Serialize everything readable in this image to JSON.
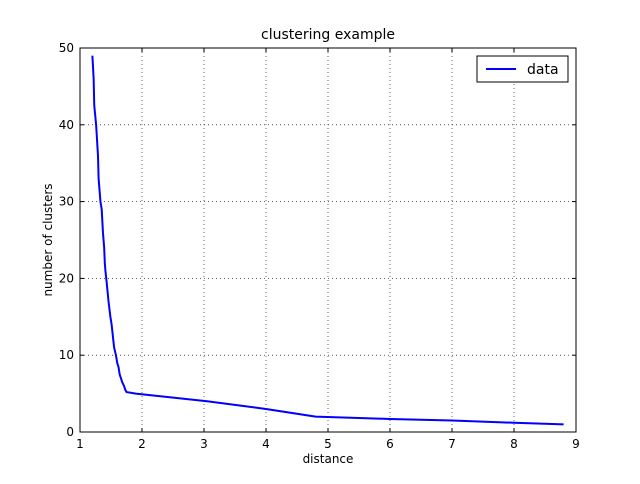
{
  "chart_data": {
    "type": "line",
    "title": "clustering example",
    "xlabel": "distance",
    "ylabel": "number of clusters",
    "xlim": [
      1,
      9
    ],
    "ylim": [
      0,
      50
    ],
    "xticks": [
      1,
      2,
      3,
      4,
      5,
      6,
      7,
      8,
      9
    ],
    "yticks": [
      0,
      10,
      20,
      30,
      40,
      50
    ],
    "grid": true,
    "legend_position": "top-right",
    "series": [
      {
        "name": "data",
        "color": "#0000ff",
        "x": [
          1.2,
          1.22,
          1.23,
          1.26,
          1.29,
          1.3,
          1.31,
          1.33,
          1.35,
          1.37,
          1.39,
          1.4,
          1.41,
          1.43,
          1.46,
          1.49,
          1.51,
          1.53,
          1.55,
          1.58,
          1.6,
          1.62,
          1.64,
          1.66,
          1.68,
          1.71,
          1.73,
          1.75,
          1.9,
          3.05,
          4.0,
          4.8,
          6.0,
          7.0,
          8.0,
          8.8
        ],
        "y": [
          49,
          46,
          42.5,
          40,
          36,
          33,
          32,
          30,
          29,
          26,
          24,
          22,
          21,
          19.5,
          17,
          15,
          14,
          12.5,
          11,
          10,
          9,
          8.5,
          7.5,
          7,
          6.5,
          6,
          5.5,
          5.2,
          5,
          4,
          3,
          2,
          1.7,
          1.5,
          1.2,
          1
        ]
      }
    ]
  }
}
